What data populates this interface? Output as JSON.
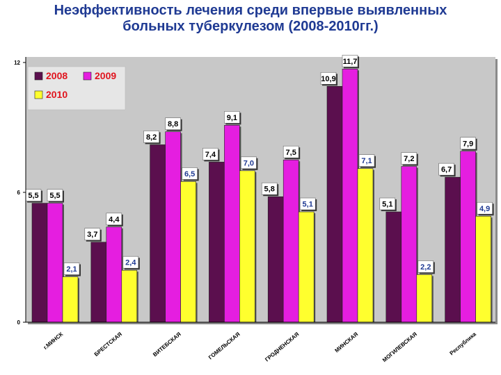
{
  "title": {
    "line1": "Неэффективность лечения среди впервые выявленных",
    "line2": "больных туберкулезом (2008-2010гг.)"
  },
  "colors": {
    "2008": "#5b0f4e",
    "2009": "#e51ee0",
    "2010": "#ffff2e",
    "label_text": "#1f3a93",
    "plot_background": "#c8c8c8"
  },
  "chart_data": {
    "type": "bar",
    "title": "Неэффективность лечения среди впервые выявленных больных туберкулезом (2008-2010гг.)",
    "categories": [
      "г.МИНСК",
      "БРЕСТСКАЯ",
      "ВИТЕБСКАЯ",
      "ГОМЕЛЬСКАЯ",
      "ГРОДНЕНСКАЯ",
      "МИНСКАЯ",
      "МОГИЛЕВСКАЯ",
      "Республика"
    ],
    "series": [
      {
        "name": "2008",
        "values": [
          5.5,
          3.7,
          8.2,
          7.4,
          5.8,
          10.9,
          5.1,
          6.7
        ],
        "labels": [
          "5,5",
          "3,7",
          "8,2",
          "7,4",
          "5,8",
          "10,9",
          "5,1",
          "6,7"
        ]
      },
      {
        "name": "2009",
        "values": [
          5.5,
          4.4,
          8.8,
          9.1,
          7.5,
          11.7,
          7.2,
          7.9
        ],
        "labels": [
          "5,5",
          "4,4",
          "8,8",
          "9,1",
          "7,5",
          "11,7",
          "7,2",
          "7,9"
        ]
      },
      {
        "name": "2010",
        "values": [
          2.1,
          2.4,
          6.5,
          7.0,
          5.1,
          7.1,
          2.2,
          4.9
        ],
        "labels": [
          "2,1",
          "2,4",
          "6,5",
          "7,0",
          "5,1",
          "7,1",
          "2,2",
          "4,9"
        ]
      }
    ],
    "yticks": [
      0,
      6,
      12
    ],
    "ylim": [
      0,
      12
    ],
    "xlabel": "",
    "ylabel": "",
    "legend": "top-left",
    "grid": false
  }
}
